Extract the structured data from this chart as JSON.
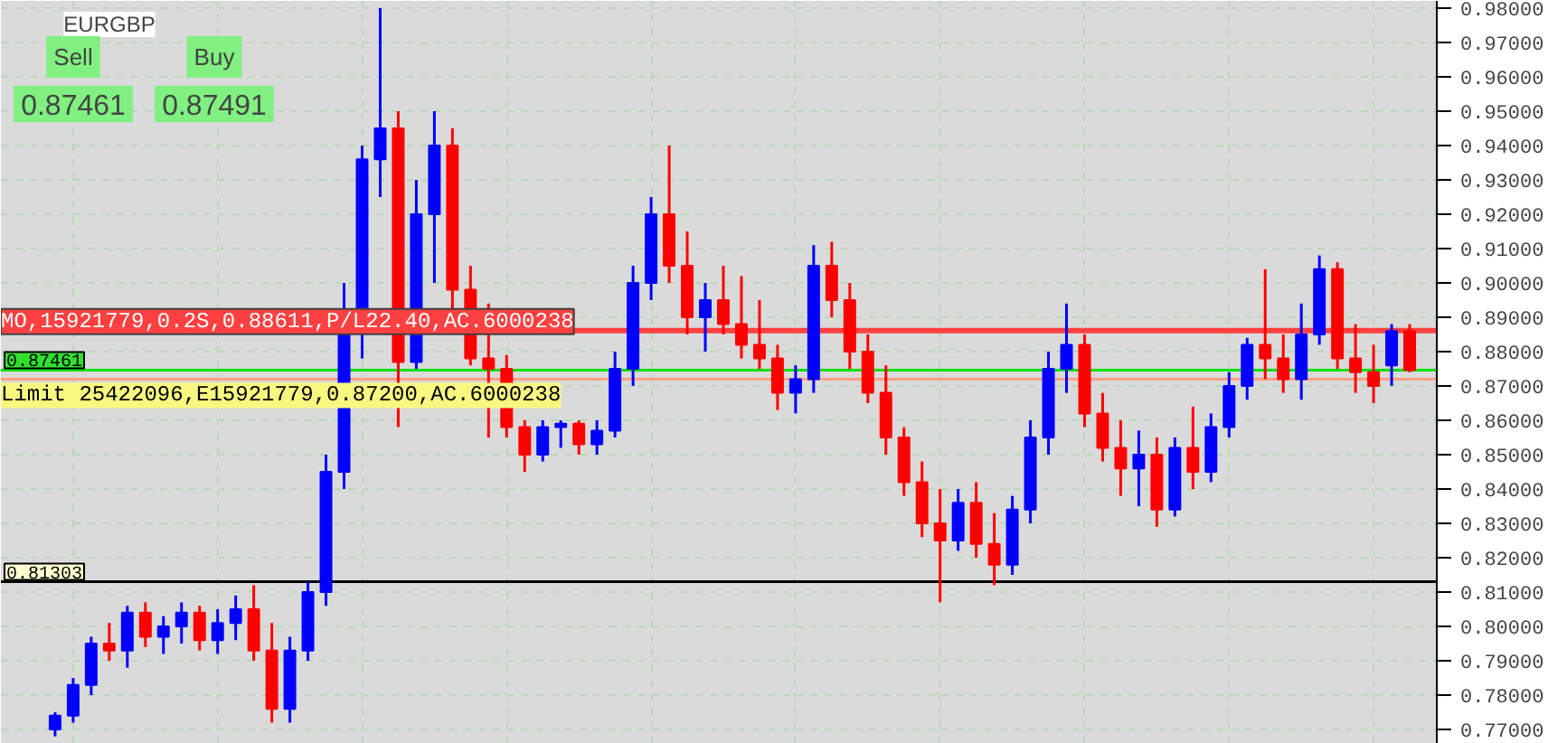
{
  "chart_data": {
    "type": "candlestick",
    "title": "EURGBP",
    "categories": [
      null,
      null,
      null,
      null,
      null,
      null,
      null,
      null,
      null,
      null,
      null,
      null,
      null,
      null,
      null,
      null,
      null,
      null,
      null,
      null,
      null,
      null,
      null,
      null,
      null,
      null,
      null,
      null,
      null,
      null,
      null,
      null,
      null,
      null,
      null,
      null,
      null,
      null,
      null,
      null,
      null,
      null,
      null,
      null,
      null,
      null,
      null,
      null,
      null,
      null,
      null,
      null,
      null,
      null,
      null,
      null,
      null,
      null,
      null,
      null,
      null,
      null,
      null,
      null,
      null,
      null,
      null,
      null,
      null,
      null,
      null,
      null,
      null,
      null,
      null,
      null
    ],
    "ohlc": [
      [
        0.77,
        0.775,
        0.768,
        0.774
      ],
      [
        0.774,
        0.785,
        0.772,
        0.783
      ],
      [
        0.783,
        0.797,
        0.78,
        0.795
      ],
      [
        0.795,
        0.801,
        0.79,
        0.793
      ],
      [
        0.793,
        0.806,
        0.788,
        0.804
      ],
      [
        0.804,
        0.807,
        0.794,
        0.797
      ],
      [
        0.797,
        0.803,
        0.792,
        0.8
      ],
      [
        0.8,
        0.807,
        0.795,
        0.804
      ],
      [
        0.804,
        0.806,
        0.793,
        0.796
      ],
      [
        0.796,
        0.805,
        0.792,
        0.801
      ],
      [
        0.801,
        0.809,
        0.796,
        0.805
      ],
      [
        0.805,
        0.812,
        0.79,
        0.793
      ],
      [
        0.793,
        0.801,
        0.772,
        0.776
      ],
      [
        0.776,
        0.797,
        0.772,
        0.793
      ],
      [
        0.793,
        0.813,
        0.79,
        0.81
      ],
      [
        0.81,
        0.85,
        0.806,
        0.845
      ],
      [
        0.845,
        0.9,
        0.84,
        0.892
      ],
      [
        0.892,
        0.94,
        0.878,
        0.936
      ],
      [
        0.936,
        0.98,
        0.925,
        0.945
      ],
      [
        0.945,
        0.95,
        0.858,
        0.877
      ],
      [
        0.877,
        0.93,
        0.875,
        0.92
      ],
      [
        0.92,
        0.95,
        0.9,
        0.94
      ],
      [
        0.94,
        0.945,
        0.892,
        0.898
      ],
      [
        0.898,
        0.905,
        0.876,
        0.878
      ],
      [
        0.878,
        0.894,
        0.855,
        0.875
      ],
      [
        0.875,
        0.879,
        0.855,
        0.858
      ],
      [
        0.858,
        0.86,
        0.845,
        0.85
      ],
      [
        0.85,
        0.86,
        0.848,
        0.858
      ],
      [
        0.858,
        0.86,
        0.852,
        0.859
      ],
      [
        0.859,
        0.86,
        0.85,
        0.853
      ],
      [
        0.853,
        0.86,
        0.85,
        0.857
      ],
      [
        0.857,
        0.88,
        0.855,
        0.875
      ],
      [
        0.875,
        0.905,
        0.87,
        0.9
      ],
      [
        0.9,
        0.925,
        0.895,
        0.92
      ],
      [
        0.92,
        0.94,
        0.9,
        0.905
      ],
      [
        0.905,
        0.915,
        0.885,
        0.89
      ],
      [
        0.89,
        0.9,
        0.88,
        0.895
      ],
      [
        0.895,
        0.905,
        0.885,
        0.888
      ],
      [
        0.888,
        0.902,
        0.878,
        0.882
      ],
      [
        0.882,
        0.895,
        0.875,
        0.878
      ],
      [
        0.878,
        0.882,
        0.863,
        0.868
      ],
      [
        0.868,
        0.876,
        0.862,
        0.872
      ],
      [
        0.872,
        0.911,
        0.868,
        0.905
      ],
      [
        0.905,
        0.912,
        0.89,
        0.895
      ],
      [
        0.895,
        0.9,
        0.875,
        0.88
      ],
      [
        0.88,
        0.885,
        0.865,
        0.868
      ],
      [
        0.868,
        0.876,
        0.85,
        0.855
      ],
      [
        0.855,
        0.858,
        0.838,
        0.842
      ],
      [
        0.842,
        0.848,
        0.826,
        0.83
      ],
      [
        0.83,
        0.84,
        0.807,
        0.825
      ],
      [
        0.825,
        0.84,
        0.822,
        0.836
      ],
      [
        0.836,
        0.842,
        0.82,
        0.824
      ],
      [
        0.824,
        0.833,
        0.812,
        0.818
      ],
      [
        0.818,
        0.838,
        0.815,
        0.834
      ],
      [
        0.834,
        0.86,
        0.83,
        0.855
      ],
      [
        0.855,
        0.88,
        0.85,
        0.875
      ],
      [
        0.875,
        0.894,
        0.868,
        0.882
      ],
      [
        0.882,
        0.885,
        0.858,
        0.862
      ],
      [
        0.862,
        0.868,
        0.848,
        0.852
      ],
      [
        0.852,
        0.86,
        0.838,
        0.846
      ],
      [
        0.846,
        0.857,
        0.835,
        0.85
      ],
      [
        0.85,
        0.855,
        0.829,
        0.834
      ],
      [
        0.834,
        0.855,
        0.832,
        0.852
      ],
      [
        0.852,
        0.864,
        0.84,
        0.845
      ],
      [
        0.845,
        0.862,
        0.842,
        0.858
      ],
      [
        0.858,
        0.874,
        0.855,
        0.87
      ],
      [
        0.87,
        0.884,
        0.866,
        0.882
      ],
      [
        0.882,
        0.904,
        0.872,
        0.878
      ],
      [
        0.878,
        0.885,
        0.868,
        0.872
      ],
      [
        0.872,
        0.894,
        0.866,
        0.885
      ],
      [
        0.885,
        0.908,
        0.882,
        0.904
      ],
      [
        0.904,
        0.906,
        0.875,
        0.878
      ],
      [
        0.878,
        0.888,
        0.868,
        0.874
      ],
      [
        0.874,
        0.882,
        0.865,
        0.87
      ],
      [
        0.876,
        0.888,
        0.87,
        0.886
      ],
      [
        0.886,
        0.888,
        0.874,
        0.8746
      ]
    ],
    "colors": [
      "#0000ff",
      "#0000ff",
      "#0000ff",
      "#ff0000",
      "#0000ff",
      "#ff0000",
      "#0000ff",
      "#0000ff",
      "#ff0000",
      "#0000ff",
      "#0000ff",
      "#ff0000",
      "#ff0000",
      "#0000ff",
      "#0000ff",
      "#0000ff",
      "#0000ff",
      "#0000ff",
      "#0000ff",
      "#ff0000",
      "#0000ff",
      "#0000ff",
      "#ff0000",
      "#ff0000",
      "#ff0000",
      "#ff0000",
      "#ff0000",
      "#0000ff",
      "#0000ff",
      "#ff0000",
      "#0000ff",
      "#0000ff",
      "#0000ff",
      "#0000ff",
      "#ff0000",
      "#ff0000",
      "#0000ff",
      "#ff0000",
      "#ff0000",
      "#ff0000",
      "#ff0000",
      "#0000ff",
      "#0000ff",
      "#ff0000",
      "#ff0000",
      "#ff0000",
      "#ff0000",
      "#ff0000",
      "#ff0000",
      "#ff0000",
      "#0000ff",
      "#ff0000",
      "#ff0000",
      "#0000ff",
      "#0000ff",
      "#0000ff",
      "#0000ff",
      "#ff0000",
      "#ff0000",
      "#ff0000",
      "#0000ff",
      "#ff0000",
      "#0000ff",
      "#ff0000",
      "#0000ff",
      "#0000ff",
      "#0000ff",
      "#ff0000",
      "#ff0000",
      "#0000ff",
      "#0000ff",
      "#ff0000",
      "#ff0000",
      "#ff0000",
      "#0000ff",
      "#ff0000"
    ],
    "ylim": [
      0.7658,
      0.9821
    ],
    "yticks": [
      {
        "value": 0.77,
        "label": "0.77000"
      },
      {
        "value": 0.78,
        "label": "0.78000"
      },
      {
        "value": 0.79,
        "label": "0.79000"
      },
      {
        "value": 0.8,
        "label": "0.80000"
      },
      {
        "value": 0.81,
        "label": "0.81000"
      },
      {
        "value": 0.82,
        "label": "0.82000"
      },
      {
        "value": 0.83,
        "label": "0.83000"
      },
      {
        "value": 0.84,
        "label": "0.84000"
      },
      {
        "value": 0.85,
        "label": "0.85000"
      },
      {
        "value": 0.86,
        "label": "0.86000"
      },
      {
        "value": 0.87,
        "label": "0.87000"
      },
      {
        "value": 0.88,
        "label": "0.88000"
      },
      {
        "value": 0.89,
        "label": "0.89000"
      },
      {
        "value": 0.9,
        "label": "0.90000"
      },
      {
        "value": 0.91,
        "label": "0.91000"
      },
      {
        "value": 0.92,
        "label": "0.92000"
      },
      {
        "value": 0.93,
        "label": "0.93000"
      },
      {
        "value": 0.94,
        "label": "0.94000"
      },
      {
        "value": 0.95,
        "label": "0.95000"
      },
      {
        "value": 0.96,
        "label": "0.96000"
      },
      {
        "value": 0.97,
        "label": "0.97000"
      },
      {
        "value": 0.98,
        "label": "0.98000"
      }
    ],
    "ref_lines": [
      {
        "axis": "y",
        "value": 0.88611,
        "label": "MO,15921779,0.2S,0.88611,P/L22.40,AC.6000238",
        "color": "#ff4040"
      },
      {
        "axis": "y",
        "value": 0.872,
        "label": "Limit 25422096,E15921779,0.87200,AC.6000238",
        "color": "#ffa080"
      },
      {
        "axis": "y",
        "value": 0.87461,
        "label": "0.87461",
        "color": "#00e000"
      },
      {
        "axis": "y",
        "value": 0.81303,
        "label": "0.81303",
        "color": "#000000"
      }
    ],
    "annotations": [
      "Sell",
      "Buy",
      "0.87461",
      "0.87491"
    ],
    "grid": true
  }
}
